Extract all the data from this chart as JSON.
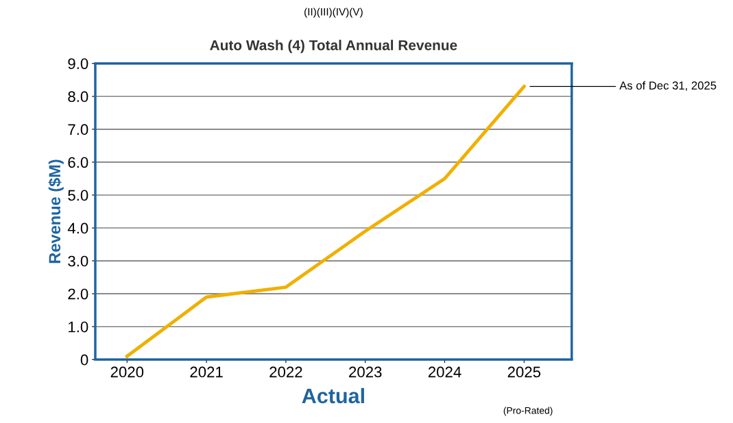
{
  "chart_data": {
    "type": "line",
    "title": "Auto Wash (4) Total Annual Revenue",
    "subtitle": "(II)(III)(IV)(V)",
    "xlabel": "Actual",
    "ylabel": "Revenue ($M)",
    "categories": [
      "2020",
      "2021",
      "2022",
      "2023",
      "2024",
      "2025"
    ],
    "series": [
      {
        "color": "#f0b000",
        "values": [
          0.1,
          1.9,
          2.2,
          3.9,
          5.5,
          8.3
        ]
      }
    ],
    "ylim": [
      0,
      9
    ],
    "yticks": [
      0,
      {
        "value": 1,
        "label": "1.0"
      },
      {
        "value": 2,
        "label": "2.0"
      },
      {
        "value": 3,
        "label": "3.0"
      },
      {
        "value": 4,
        "label": "4.0"
      },
      {
        "value": 5,
        "label": "5.0"
      },
      {
        "value": 6,
        "label": "6.0"
      },
      {
        "value": 7,
        "label": "7.0"
      },
      {
        "value": 8,
        "label": "8.0"
      },
      {
        "value": 9,
        "label": "9.0"
      }
    ],
    "grid": "y",
    "marker": "none",
    "line_style": "solid",
    "annotations": [
      {
        "text": "As of Dec 31, 2025",
        "x": "2025",
        "y": 8.3
      },
      "(Pro-Rated)"
    ]
  }
}
